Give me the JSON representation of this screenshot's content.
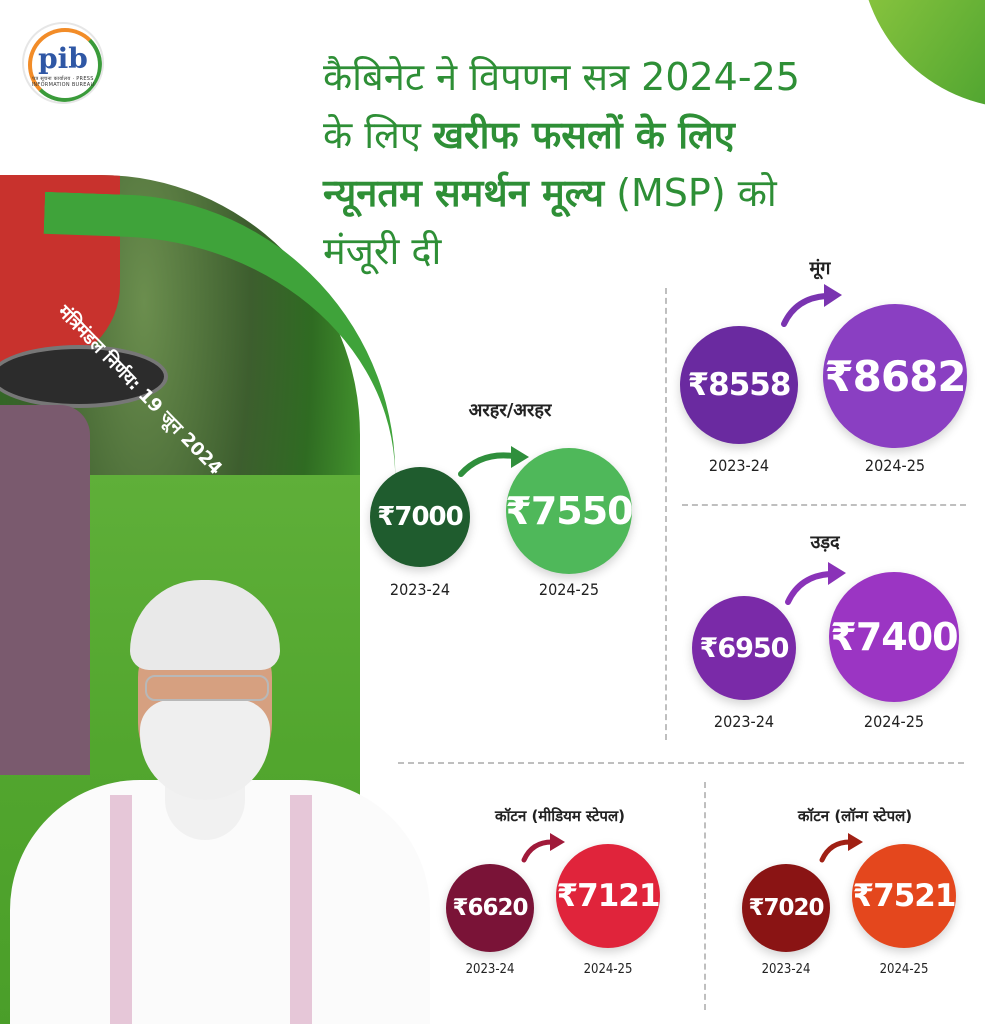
{
  "logo": {
    "mark": "pib",
    "subtext": "पत्र सूचना कार्यालय · PRESS INFORMATION BUREAU"
  },
  "title": {
    "line1": "कैबिनेट ने विपणन सत्र 2024-25",
    "line2_regular": "के लिए ",
    "line2_bold": "खरीफ फसलों के लिए",
    "line3_bold": "न्यूनतम समर्थन मूल्य",
    "line3_regular": " (MSP) को",
    "line4": "मंजूरी दी"
  },
  "decision_badge": "मंत्रिमंडल निर्णय: 19 जून 2024",
  "colors": {
    "title_green": "#2e8f36",
    "arhar_old": "#1f5c2e",
    "arhar_new": "#4fb85a",
    "moong_old": "#6a2aa0",
    "moong_new": "#8a3fc2",
    "urad_old": "#7a2aa8",
    "urad_new": "#9b35c3",
    "cotton_med_old": "#7a1337",
    "cotton_med_new": "#e0243b",
    "cotton_long_old": "#8a1414",
    "cotton_long_new": "#e4471d"
  },
  "crops": {
    "arhar": {
      "name": "अरहर/अरहर",
      "old_price": "₹7000",
      "new_price": "₹7550",
      "old_year": "2023-24",
      "new_year": "2024-25"
    },
    "moong": {
      "name": "मूंग",
      "old_price": "₹8558",
      "new_price": "₹8682",
      "old_year": "2023-24",
      "new_year": "2024-25"
    },
    "urad": {
      "name": "उड़द",
      "old_price": "₹6950",
      "new_price": "₹7400",
      "old_year": "2023-24",
      "new_year": "2024-25"
    },
    "cotton_medium": {
      "name": "कॉटन (मीडियम स्टेपल)",
      "old_price": "₹6620",
      "new_price": "₹7121",
      "old_year": "2023-24",
      "new_year": "2024-25"
    },
    "cotton_long": {
      "name": "कॉटन (लॉन्ग स्टेपल)",
      "old_price": "₹7020",
      "new_price": "₹7521",
      "old_year": "2023-24",
      "new_year": "2024-25"
    }
  }
}
